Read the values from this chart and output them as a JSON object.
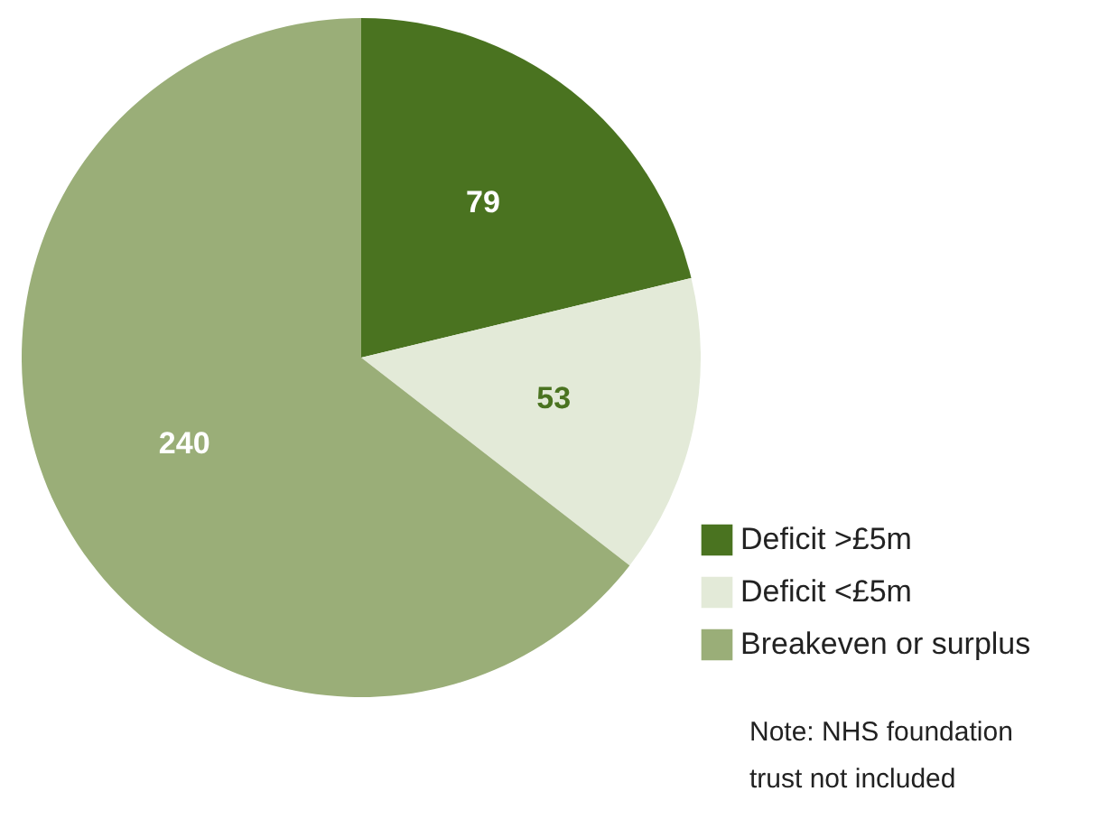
{
  "chart_data": {
    "type": "pie",
    "categories": [
      "Deficit >£5m",
      "Deficit <£5m",
      "Breakeven or surplus"
    ],
    "values": [
      79,
      53,
      240
    ],
    "colors": [
      "#4a7320",
      "#e3ead8",
      "#9aae78"
    ],
    "data_labels": true,
    "legend": "bottom right",
    "annotations": [
      "Note: NHS foundation trust not included"
    ]
  }
}
